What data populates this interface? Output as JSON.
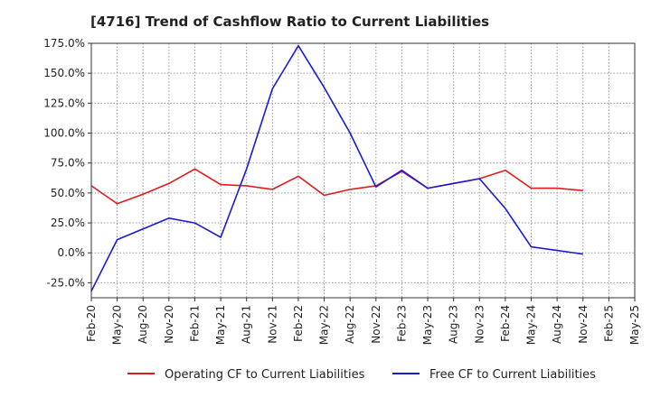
{
  "chart_data": {
    "type": "line",
    "title": "[4716]  Trend of Cashflow Ratio to Current Liabilities",
    "xlabel": "",
    "ylabel": "",
    "categories": [
      "Feb-20",
      "May-20",
      "Aug-20",
      "Nov-20",
      "Feb-21",
      "May-21",
      "Aug-21",
      "Nov-21",
      "Feb-22",
      "May-22",
      "Aug-22",
      "Nov-22",
      "Feb-23",
      "May-23",
      "Aug-23",
      "Nov-23",
      "Feb-24",
      "May-24",
      "Aug-24",
      "Nov-24",
      "Feb-25",
      "May-25"
    ],
    "ylim": [
      -37.5,
      175
    ],
    "yticks": [
      -25,
      0,
      25,
      50,
      75,
      100,
      125,
      150,
      175
    ],
    "ytick_labels": [
      "-25.0%",
      "0.0%",
      "25.0%",
      "50.0%",
      "75.0%",
      "100.0%",
      "125.0%",
      "150.0%",
      "175.0%"
    ],
    "grid": true,
    "legend_position": "bottom",
    "series": [
      {
        "name": "Operating CF to Current Liabilities",
        "color": "#e31a1c",
        "values": [
          56,
          41,
          49,
          58,
          70,
          57,
          56,
          53,
          64,
          48,
          53,
          56,
          68,
          54,
          58,
          62,
          69,
          54,
          54,
          52,
          null,
          null
        ]
      },
      {
        "name": "Free CF to Current Liabilities",
        "color": "#1a1adb",
        "values": [
          -32,
          11,
          20,
          29,
          25,
          13,
          70,
          137,
          173,
          138,
          100,
          55,
          69,
          54,
          58,
          62,
          37,
          5,
          2,
          -1,
          null,
          null
        ]
      }
    ]
  }
}
